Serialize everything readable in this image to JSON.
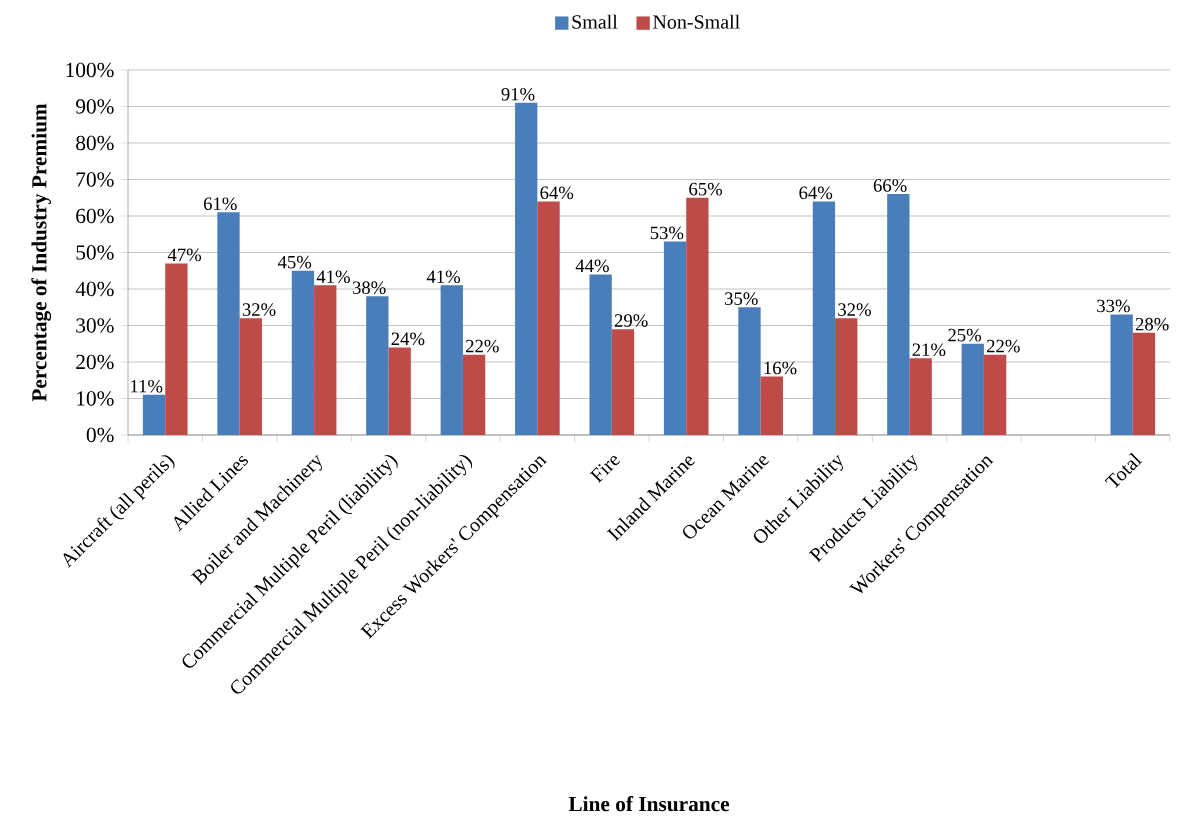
{
  "chart_data": {
    "type": "bar",
    "xlabel": "Line of Insurance",
    "ylabel": "Percentage of Industry Premium",
    "categories": [
      "Aircraft (all perils)",
      "Allied Lines",
      "Boiler and Machinery",
      "Commercial Multiple Peril (liability)",
      "Commercial Multiple Peril (non-liability)",
      "Excess Workers' Compensation",
      "Fire",
      "Inland Marine",
      "Ocean Marine",
      "Other Liability",
      "Products Liability",
      "Workers' Compensation",
      null,
      "Total"
    ],
    "series": [
      {
        "name": "Small",
        "color": "#4a7ebb",
        "values": [
          11,
          61,
          45,
          38,
          41,
          91,
          44,
          53,
          35,
          64,
          66,
          25,
          null,
          33
        ],
        "value_labels": [
          "11%",
          "61%",
          "45%",
          "38%",
          "41%",
          "91%",
          "44%",
          "53%",
          "35%",
          "64%",
          "66%",
          "25%",
          null,
          "33%"
        ]
      },
      {
        "name": "Non-Small",
        "color": "#be4b48",
        "values": [
          47,
          32,
          41,
          24,
          22,
          64,
          29,
          65,
          16,
          32,
          21,
          22,
          null,
          28
        ],
        "value_labels": [
          "47%",
          "32%",
          "41%",
          "24%",
          "22%",
          "64%",
          "29%",
          "65%",
          "16%",
          "32%",
          "21%",
          "22%",
          null,
          "28%"
        ]
      }
    ],
    "ylim": [
      0,
      100
    ],
    "yticks": [
      {
        "value": 0,
        "label": "0%"
      },
      {
        "value": 10,
        "label": "10%"
      },
      {
        "value": 20,
        "label": "20%"
      },
      {
        "value": 30,
        "label": "30%"
      },
      {
        "value": 40,
        "label": "40%"
      },
      {
        "value": 50,
        "label": "50%"
      },
      {
        "value": 60,
        "label": "60%"
      },
      {
        "value": 70,
        "label": "70%"
      },
      {
        "value": 80,
        "label": "80%"
      },
      {
        "value": 90,
        "label": "90%"
      },
      {
        "value": 100,
        "label": "100%"
      }
    ],
    "grid": "y",
    "legend": "top"
  }
}
